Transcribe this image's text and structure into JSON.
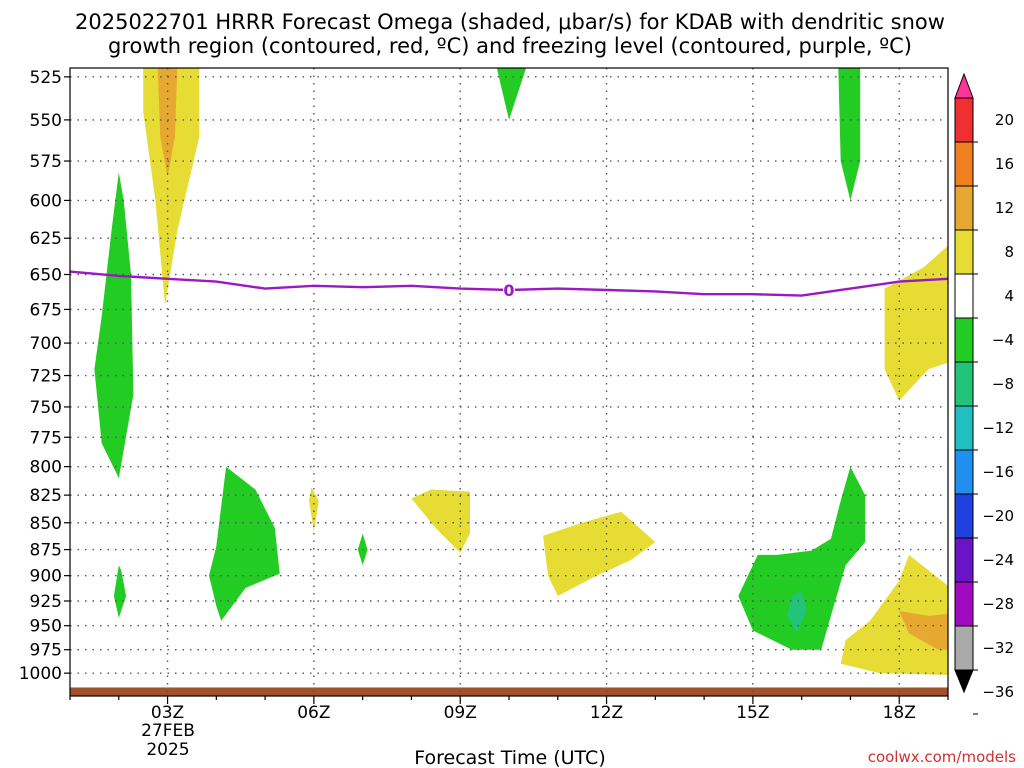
{
  "title_line1": "2025022701 HRRR Forecast Omega (shaded, μbar/s) for KDAB with dendritic snow",
  "title_line2": "growth region (contoured, red, ºC) and freezing level (contoured, purple, ºC)",
  "xlabel": "Forecast Time (UTC)",
  "date_label": [
    "27FEB",
    "2025"
  ],
  "watermark": "coolwx.com/models",
  "chart_data": {
    "type": "heatmap",
    "x_unit": "forecast hour (UTC)",
    "xlim": [
      1,
      19
    ],
    "ylim": [
      1025,
      520
    ],
    "y_scale": "log-pressure",
    "grid": true,
    "x_ticks": [
      {
        "v": 3,
        "label": "03Z"
      },
      {
        "v": 6,
        "label": "06Z"
      },
      {
        "v": 9,
        "label": "09Z"
      },
      {
        "v": 12,
        "label": "12Z"
      },
      {
        "v": 15,
        "label": "15Z"
      },
      {
        "v": 18,
        "label": "18Z"
      }
    ],
    "y_ticks": [
      "525",
      "550",
      "575",
      "600",
      "625",
      "650",
      "675",
      "700",
      "725",
      "750",
      "775",
      "800",
      "825",
      "850",
      "875",
      "900",
      "925",
      "950",
      "975",
      "1000"
    ],
    "colorbar": {
      "labels": [
        "20",
        "16",
        "12",
        "8",
        "4",
        "−4",
        "−8",
        "−12",
        "−16",
        "−20",
        "−24",
        "−28",
        "−32",
        "−36"
      ],
      "colors": [
        "#ff3399",
        "#f03030",
        "#f08020",
        "#e6a830",
        "#e6dc33",
        "#ffffff",
        "#22cc22",
        "#22c47a",
        "#20c0c0",
        "#2090f0",
        "#2040e0",
        "#6a14c8",
        "#a20ac2",
        "#aaaaaa",
        "#000000"
      ]
    },
    "freezing_level": {
      "label": "0",
      "color": "#9b19c4",
      "points": [
        [
          1,
          648
        ],
        [
          2,
          651
        ],
        [
          3,
          653
        ],
        [
          4,
          655
        ],
        [
          5,
          660
        ],
        [
          6,
          658
        ],
        [
          7,
          659
        ],
        [
          8,
          658
        ],
        [
          9,
          660
        ],
        [
          10,
          661
        ],
        [
          11,
          660
        ],
        [
          12,
          661
        ],
        [
          13,
          662
        ],
        [
          14,
          664
        ],
        [
          15,
          664
        ],
        [
          16,
          665
        ],
        [
          17,
          660
        ],
        [
          18,
          655
        ],
        [
          19,
          653
        ]
      ]
    },
    "ground": {
      "color": "#a0522d",
      "pressure": 1020
    },
    "regions": [
      {
        "name": "green-upper-left",
        "color": "#22cc22",
        "points": [
          [
            2.0,
            582
          ],
          [
            1.85,
            620
          ],
          [
            1.65,
            680
          ],
          [
            1.5,
            720
          ],
          [
            1.65,
            780
          ],
          [
            2.0,
            810
          ],
          [
            2.3,
            740
          ],
          [
            2.25,
            650
          ],
          [
            2.1,
            600
          ]
        ]
      },
      {
        "name": "green-small-919",
        "color": "#22cc22",
        "points": [
          [
            2.0,
            890
          ],
          [
            1.9,
            920
          ],
          [
            2.0,
            942
          ],
          [
            2.15,
            920
          ],
          [
            2.05,
            895
          ]
        ]
      },
      {
        "name": "yellow-top-plume",
        "color": "#e6dc33",
        "points": [
          [
            2.5,
            520
          ],
          [
            2.5,
            545
          ],
          [
            2.75,
            600
          ],
          [
            2.95,
            672
          ],
          [
            3.2,
            620
          ],
          [
            3.65,
            560
          ],
          [
            3.65,
            520
          ]
        ]
      },
      {
        "name": "orange-top-core",
        "color": "#e6a830",
        "points": [
          [
            2.8,
            520
          ],
          [
            2.85,
            560
          ],
          [
            3.0,
            585
          ],
          [
            3.15,
            560
          ],
          [
            3.2,
            520
          ]
        ]
      },
      {
        "name": "green-middle-lower",
        "color": "#22cc22",
        "points": [
          [
            4.0,
            872
          ],
          [
            3.85,
            900
          ],
          [
            4.0,
            930
          ],
          [
            4.1,
            945
          ],
          [
            4.6,
            912
          ],
          [
            5.3,
            898
          ],
          [
            5.2,
            855
          ],
          [
            4.8,
            820
          ],
          [
            4.2,
            800
          ]
        ]
      },
      {
        "name": "yellow-sliver-06z",
        "color": "#e6dc33",
        "points": [
          [
            5.95,
            818
          ],
          [
            6.1,
            830
          ],
          [
            6.0,
            858
          ],
          [
            5.9,
            830
          ]
        ]
      },
      {
        "name": "green-sliver-07z",
        "color": "#22cc22",
        "points": [
          [
            7.0,
            860
          ],
          [
            6.9,
            875
          ],
          [
            7.0,
            890
          ],
          [
            7.1,
            875
          ]
        ]
      },
      {
        "name": "yellow-08z-09z",
        "color": "#e6dc33",
        "points": [
          [
            8.0,
            828
          ],
          [
            8.5,
            855
          ],
          [
            9.0,
            878
          ],
          [
            9.2,
            860
          ],
          [
            9.2,
            822
          ],
          [
            8.4,
            820
          ]
        ]
      },
      {
        "name": "green-top-10z",
        "color": "#22cc22",
        "points": [
          [
            9.75,
            520
          ],
          [
            10.0,
            550
          ],
          [
            10.35,
            520
          ]
        ]
      },
      {
        "name": "yellow-11z-13z",
        "color": "#e6dc33",
        "points": [
          [
            10.7,
            862
          ],
          [
            10.8,
            900
          ],
          [
            11.0,
            920
          ],
          [
            11.8,
            900
          ],
          [
            12.5,
            885
          ],
          [
            13.0,
            868
          ],
          [
            12.3,
            840
          ],
          [
            11.5,
            850
          ]
        ]
      },
      {
        "name": "green-15z-17z",
        "color": "#22cc22",
        "points": [
          [
            15.1,
            880
          ],
          [
            14.7,
            920
          ],
          [
            15.0,
            955
          ],
          [
            15.8,
            975
          ],
          [
            16.4,
            975
          ],
          [
            16.6,
            940
          ],
          [
            16.9,
            890
          ],
          [
            17.3,
            868
          ],
          [
            17.3,
            825
          ],
          [
            17.0,
            800
          ],
          [
            16.8,
            830
          ],
          [
            16.6,
            865
          ],
          [
            16.2,
            876
          ],
          [
            15.5,
            880
          ]
        ]
      },
      {
        "name": "teal-core-16z",
        "color": "#22c47a",
        "points": [
          [
            15.8,
            920
          ],
          [
            15.7,
            940
          ],
          [
            15.9,
            957
          ],
          [
            16.1,
            935
          ],
          [
            16.0,
            915
          ]
        ]
      },
      {
        "name": "green-top-17z",
        "color": "#22cc22",
        "points": [
          [
            16.75,
            520
          ],
          [
            16.8,
            575
          ],
          [
            17.0,
            600
          ],
          [
            17.2,
            575
          ],
          [
            17.2,
            520
          ]
        ]
      },
      {
        "name": "yellow-lower-right",
        "color": "#e6dc33",
        "points": [
          [
            16.8,
            990
          ],
          [
            17.6,
            1000
          ],
          [
            19.0,
            1002
          ],
          [
            19.0,
            910
          ],
          [
            18.2,
            880
          ],
          [
            18.0,
            905
          ],
          [
            17.4,
            945
          ],
          [
            16.9,
            965
          ]
        ]
      },
      {
        "name": "orange-lower-right",
        "color": "#e6a830",
        "points": [
          [
            18.0,
            935
          ],
          [
            18.2,
            958
          ],
          [
            18.8,
            975
          ],
          [
            19.0,
            975
          ],
          [
            19.0,
            938
          ],
          [
            18.6,
            940
          ]
        ]
      },
      {
        "name": "yellow-right-mid",
        "color": "#e6dc33",
        "points": [
          [
            17.7,
            660
          ],
          [
            17.7,
            720
          ],
          [
            18.0,
            745
          ],
          [
            18.6,
            720
          ],
          [
            19.0,
            715
          ],
          [
            19.0,
            630
          ],
          [
            18.5,
            645
          ]
        ]
      }
    ]
  }
}
